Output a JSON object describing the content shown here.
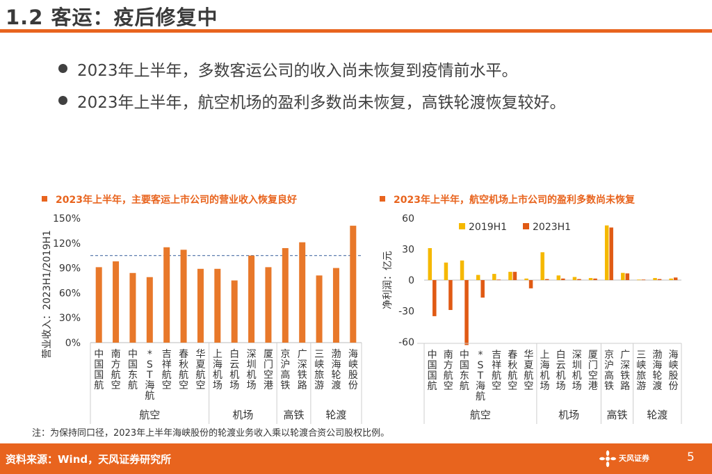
{
  "slide": {
    "title": "1.2 客运：疫后修复中",
    "bullets": [
      "2023年上半年，多数客运公司的收入尚未恢复到疫情前水平。",
      "2023年上半年，航空机场的盈利多数尚未恢复，高铁轮渡恢复较好。"
    ],
    "note": "注：为保持同口径，2023年上半年海峡股份的轮渡业务收入乘以轮渡合资公司股权比例。",
    "footer_source": "资料来源：Wind，天风证券研究所",
    "logo_text": "天风证券",
    "page_number": "5"
  },
  "colors": {
    "accent": "#e8641e",
    "bar": "#e8782a",
    "bar2019": "#f5b800",
    "bar2023": "#e05a14",
    "refline": "#4a6fa5"
  },
  "chart_data": [
    {
      "type": "bar",
      "title": "2023年上半年，主要客运上市公司的营业收入恢复良好",
      "ylabel": "营业收入：2023H1/2019H1",
      "ylim": [
        0,
        150
      ],
      "yticks": [
        "0%",
        "30%",
        "60%",
        "90%",
        "120%",
        "150%"
      ],
      "yticks_values": [
        0,
        30,
        60,
        90,
        120,
        150
      ],
      "reference_line": 105,
      "categories": [
        "中国国航",
        "南方航空",
        "中国东航",
        "*ST海航",
        "吉祥航空",
        "春秋航空",
        "华夏航空",
        "上海机场",
        "白云机场",
        "深圳机场",
        "厦门空港",
        "京沪高铁",
        "广深铁路",
        "三峡旅游",
        "渤海轮渡",
        "海峡股份"
      ],
      "values": [
        91,
        98,
        84,
        79,
        115,
        112,
        89,
        89,
        75,
        105,
        91,
        114,
        121,
        81,
        90,
        141
      ],
      "groups": [
        {
          "name": "航空",
          "count": 7
        },
        {
          "name": "机场",
          "count": 4
        },
        {
          "name": "高铁",
          "count": 2
        },
        {
          "name": "轮渡",
          "count": 3
        }
      ]
    },
    {
      "type": "bar",
      "title": "2023年上半年，航空机场上市公司的盈利多数尚未恢复",
      "ylabel": "净利润：亿元",
      "ylim": [
        -60,
        60
      ],
      "yticks": [
        "-60",
        "-30",
        "0",
        "30",
        "60"
      ],
      "yticks_values": [
        -60,
        -30,
        0,
        30,
        60
      ],
      "legend": [
        "2019H1",
        "2023H1"
      ],
      "categories": [
        "中国国航",
        "南方航空",
        "中国东航",
        "*ST海航",
        "吉祥航空",
        "春秋航空",
        "华夏航空",
        "上海机场",
        "白云机场",
        "深圳机场",
        "厦门空港",
        "京沪高铁",
        "广深铁路",
        "三峡旅游",
        "渤海轮渡",
        "海峡股份"
      ],
      "series": [
        {
          "name": "2019H1",
          "values": [
            31,
            17,
            19,
            5,
            6,
            8,
            1.5,
            27,
            4.5,
            3,
            2,
            53,
            7,
            0.5,
            2,
            1.5
          ]
        },
        {
          "name": "2023H1",
          "values": [
            -35,
            -29,
            -63,
            -17,
            0.5,
            8,
            -8,
            1,
            1.5,
            1,
            1.5,
            51,
            6.5,
            0.5,
            1,
            2.5
          ]
        }
      ],
      "groups": [
        {
          "name": "航空",
          "count": 7
        },
        {
          "name": "机场",
          "count": 4
        },
        {
          "name": "高铁",
          "count": 2
        },
        {
          "name": "轮渡",
          "count": 3
        }
      ]
    }
  ]
}
